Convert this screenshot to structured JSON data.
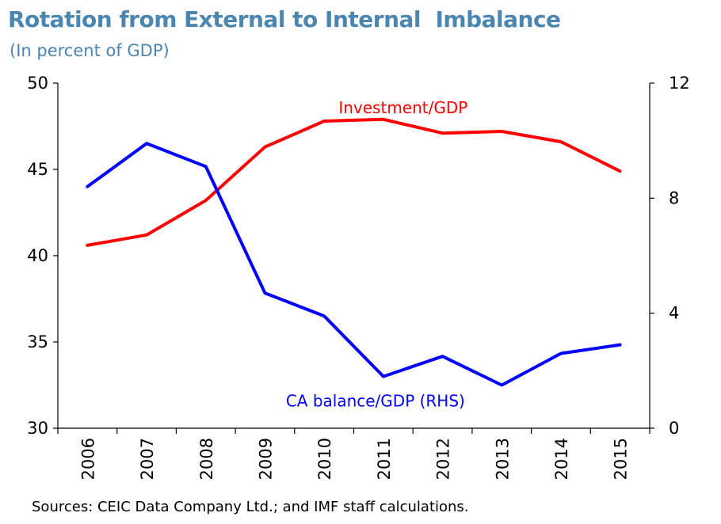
{
  "title": "Rotation from External to Internal  Imbalance",
  "subtitle": "(In percent of GDP)",
  "source": "Sources: CEIC Data Company Ltd.; and IMF staff calculations.",
  "chart_data": {
    "type": "line",
    "categories": [
      "2006",
      "2007",
      "2008",
      "2009",
      "2010",
      "2011",
      "2012",
      "2013",
      "2014",
      "2015"
    ],
    "left_axis": {
      "ylim": [
        30,
        50
      ],
      "ticks": [
        "30",
        "35",
        "40",
        "45",
        "50"
      ]
    },
    "right_axis": {
      "ylim": [
        0,
        12
      ],
      "ticks": [
        "0",
        "4",
        "8",
        "12"
      ]
    },
    "series": [
      {
        "name": "Investment/GDP",
        "axis": "left",
        "color": "#ff0000",
        "values": [
          40.6,
          41.2,
          43.2,
          46.3,
          47.8,
          47.9,
          47.1,
          47.2,
          46.6,
          44.9
        ]
      },
      {
        "name": "CA balance/GDP (RHS)",
        "axis": "right",
        "color": "#0000ff",
        "values": [
          8.4,
          9.9,
          9.1,
          4.7,
          3.9,
          1.8,
          2.5,
          1.5,
          2.6,
          2.9
        ]
      }
    ],
    "grid": false
  }
}
